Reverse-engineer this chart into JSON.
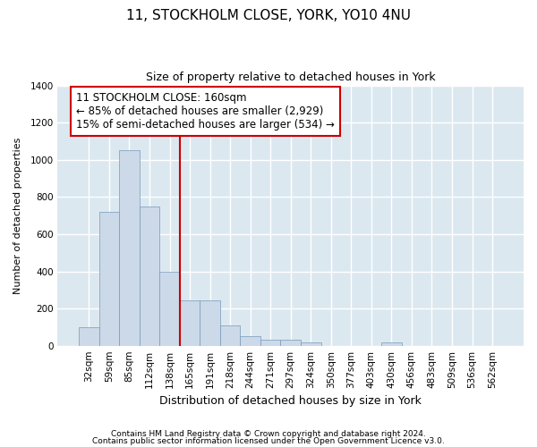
{
  "title": "11, STOCKHOLM CLOSE, YORK, YO10 4NU",
  "subtitle": "Size of property relative to detached houses in York",
  "xlabel": "Distribution of detached houses by size in York",
  "ylabel": "Number of detached properties",
  "categories": [
    "32sqm",
    "59sqm",
    "85sqm",
    "112sqm",
    "138sqm",
    "165sqm",
    "191sqm",
    "218sqm",
    "244sqm",
    "271sqm",
    "297sqm",
    "324sqm",
    "350sqm",
    "377sqm",
    "403sqm",
    "430sqm",
    "456sqm",
    "483sqm",
    "509sqm",
    "536sqm",
    "562sqm"
  ],
  "values": [
    100,
    720,
    1050,
    750,
    400,
    245,
    245,
    110,
    50,
    30,
    30,
    20,
    0,
    0,
    0,
    20,
    0,
    0,
    0,
    0,
    0
  ],
  "bar_color": "#ccd9e8",
  "bar_edge_color": "#7799bb",
  "vline_x_index": 5,
  "vline_color": "#cc0000",
  "ylim": [
    0,
    1400
  ],
  "yticks": [
    0,
    200,
    400,
    600,
    800,
    1000,
    1200,
    1400
  ],
  "annotation_title": "11 STOCKHOLM CLOSE: 160sqm",
  "annotation_line1": "← 85% of detached houses are smaller (2,929)",
  "annotation_line2": "15% of semi-detached houses are larger (534) →",
  "annotation_box_edgecolor": "#cc0000",
  "footer1": "Contains HM Land Registry data © Crown copyright and database right 2024.",
  "footer2": "Contains public sector information licensed under the Open Government Licence v3.0.",
  "bg_color": "#ffffff",
  "plot_bg_color": "#dce8f0",
  "grid_color": "#ffffff",
  "title_fontsize": 11,
  "subtitle_fontsize": 9,
  "xlabel_fontsize": 9,
  "ylabel_fontsize": 8,
  "tick_fontsize": 7.5,
  "annotation_fontsize": 8.5,
  "footer_fontsize": 6.5
}
